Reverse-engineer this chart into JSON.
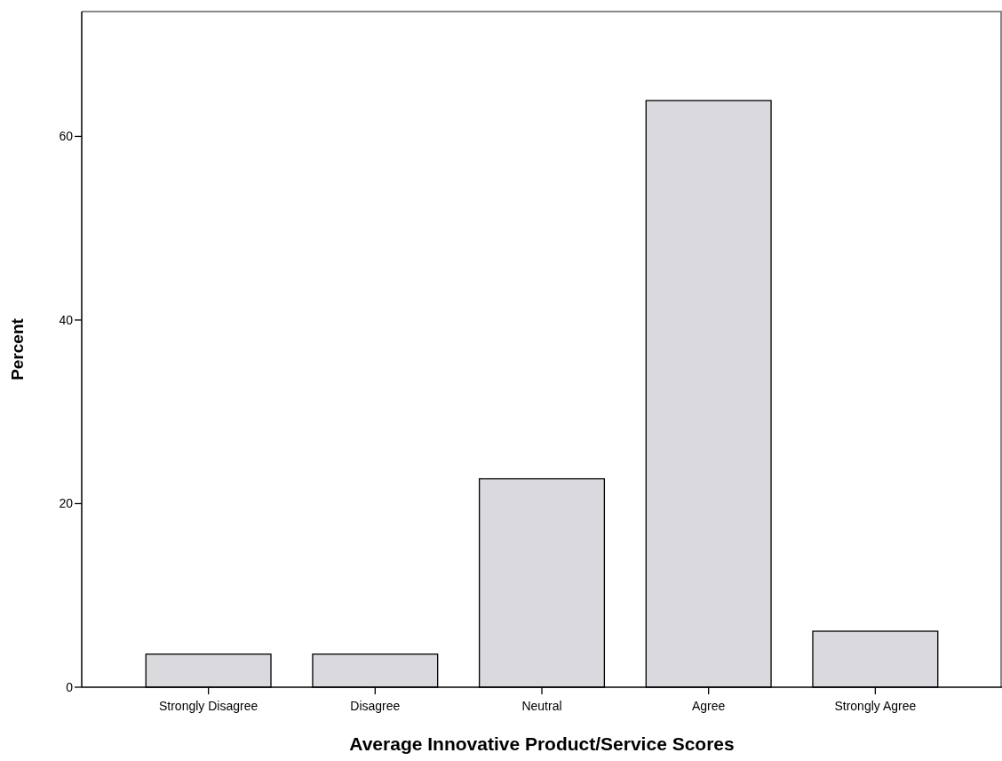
{
  "chart_data": {
    "type": "bar",
    "xlabel": "Average Innovative Product/Service Scores",
    "ylabel": "Percent",
    "categories": [
      "Strongly Disagree",
      "Disagree",
      "Neutral",
      "Agree",
      "Strongly Agree"
    ],
    "values": [
      3.6,
      3.6,
      22.7,
      63.9,
      6.1
    ],
    "color": "#d9d9de",
    "ylim": [
      0,
      73.6
    ],
    "yticks": [
      0,
      20,
      40,
      60
    ],
    "grid": false
  }
}
